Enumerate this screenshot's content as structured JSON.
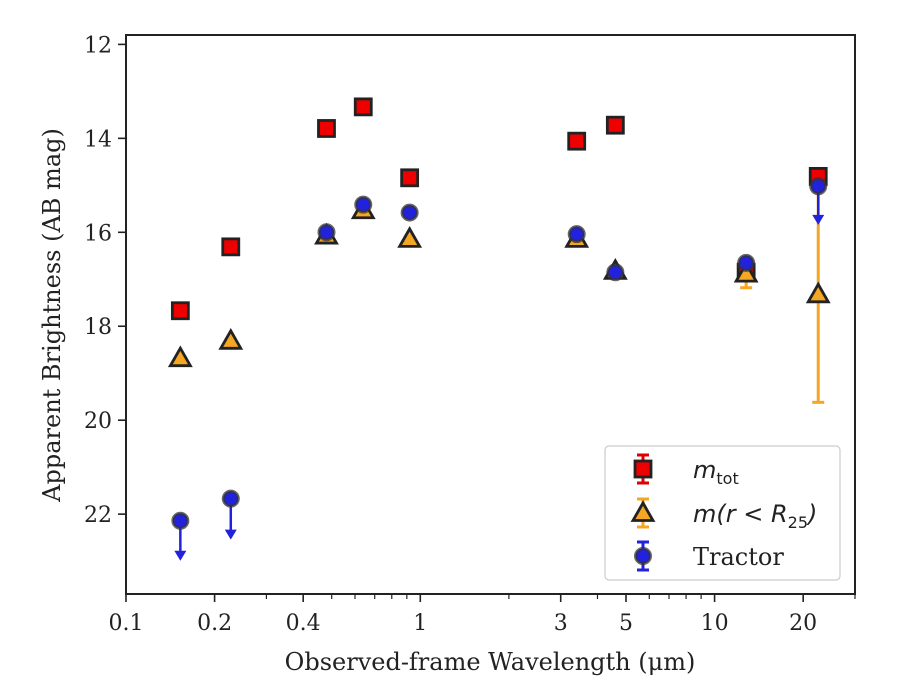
{
  "chart_data": {
    "type": "scatter",
    "xlabel": "Observed-frame Wavelength (μm)",
    "ylabel": "Apparent Brightness (AB mag)",
    "x_scale": "log",
    "xlim": [
      0.1,
      30
    ],
    "ylim": [
      23.7,
      11.8
    ],
    "y_inverted": true,
    "x_ticks": [
      {
        "value": 0.1,
        "label": "0.1"
      },
      {
        "value": 0.2,
        "label": "0.2"
      },
      {
        "value": 0.4,
        "label": "0.4"
      },
      {
        "value": 1,
        "label": "1"
      },
      {
        "value": 3,
        "label": "3"
      },
      {
        "value": 5,
        "label": "5"
      },
      {
        "value": 10,
        "label": "10"
      },
      {
        "value": 20,
        "label": "20"
      }
    ],
    "y_ticks": [
      {
        "value": 12,
        "label": "12"
      },
      {
        "value": 14,
        "label": "14"
      },
      {
        "value": 16,
        "label": "16"
      },
      {
        "value": 18,
        "label": "18"
      },
      {
        "value": 20,
        "label": "20"
      },
      {
        "value": 22,
        "label": "22"
      }
    ],
    "grid": false,
    "legend_position": "bottom-right",
    "series": [
      {
        "key": "mtot",
        "legend_main": "m",
        "legend_sub": "tot",
        "marker": "square",
        "color": "#ee0000",
        "errcolor": "#dd0000",
        "points": [
          {
            "x": 0.153,
            "y": 17.67,
            "err": 0
          },
          {
            "x": 0.227,
            "y": 16.31,
            "err": 0
          },
          {
            "x": 0.48,
            "y": 13.79,
            "err": 0
          },
          {
            "x": 0.64,
            "y": 13.33,
            "err": 0
          },
          {
            "x": 0.92,
            "y": 14.84,
            "err": 0
          },
          {
            "x": 3.4,
            "y": 14.06,
            "err": 0
          },
          {
            "x": 4.6,
            "y": 13.72,
            "err": 0
          },
          {
            "x": 12.8,
            "y": 16.85,
            "err": 0
          },
          {
            "x": 22.5,
            "y": 14.81,
            "err": 0
          }
        ]
      },
      {
        "key": "mr25",
        "legend_main": "m(r < R",
        "legend_sub": "25",
        "legend_end": ")",
        "marker": "triangle",
        "color": "#f5a623",
        "errcolor": "#f5a623",
        "points": [
          {
            "x": 0.153,
            "y": 18.68,
            "err": 0
          },
          {
            "x": 0.227,
            "y": 18.31,
            "err": 0
          },
          {
            "x": 0.48,
            "y": 16.07,
            "err": 0
          },
          {
            "x": 0.64,
            "y": 15.53,
            "err": 0
          },
          {
            "x": 0.92,
            "y": 16.14,
            "err": 0
          },
          {
            "x": 3.4,
            "y": 16.14,
            "err": 0
          },
          {
            "x": 4.6,
            "y": 16.82,
            "err": 0
          },
          {
            "x": 12.8,
            "y": 16.88,
            "err": 0.3
          },
          {
            "x": 22.5,
            "y": 17.32,
            "err": 2.3
          }
        ]
      },
      {
        "key": "tractor",
        "legend_main": "Tractor",
        "marker": "circle",
        "color": "#2222dd",
        "errcolor": "#2222dd",
        "points": [
          {
            "x": 0.153,
            "y": 22.14,
            "upper_limit": true,
            "arrow_to": 22.95
          },
          {
            "x": 0.227,
            "y": 21.67,
            "upper_limit": true,
            "arrow_to": 22.5
          },
          {
            "x": 0.48,
            "y": 16.0
          },
          {
            "x": 0.64,
            "y": 15.41
          },
          {
            "x": 0.92,
            "y": 15.58
          },
          {
            "x": 3.4,
            "y": 16.04
          },
          {
            "x": 4.6,
            "y": 16.85
          },
          {
            "x": 12.8,
            "y": 16.65
          },
          {
            "x": 22.5,
            "y": 15.02,
            "upper_limit": true,
            "arrow_to": 15.8
          }
        ]
      }
    ]
  }
}
